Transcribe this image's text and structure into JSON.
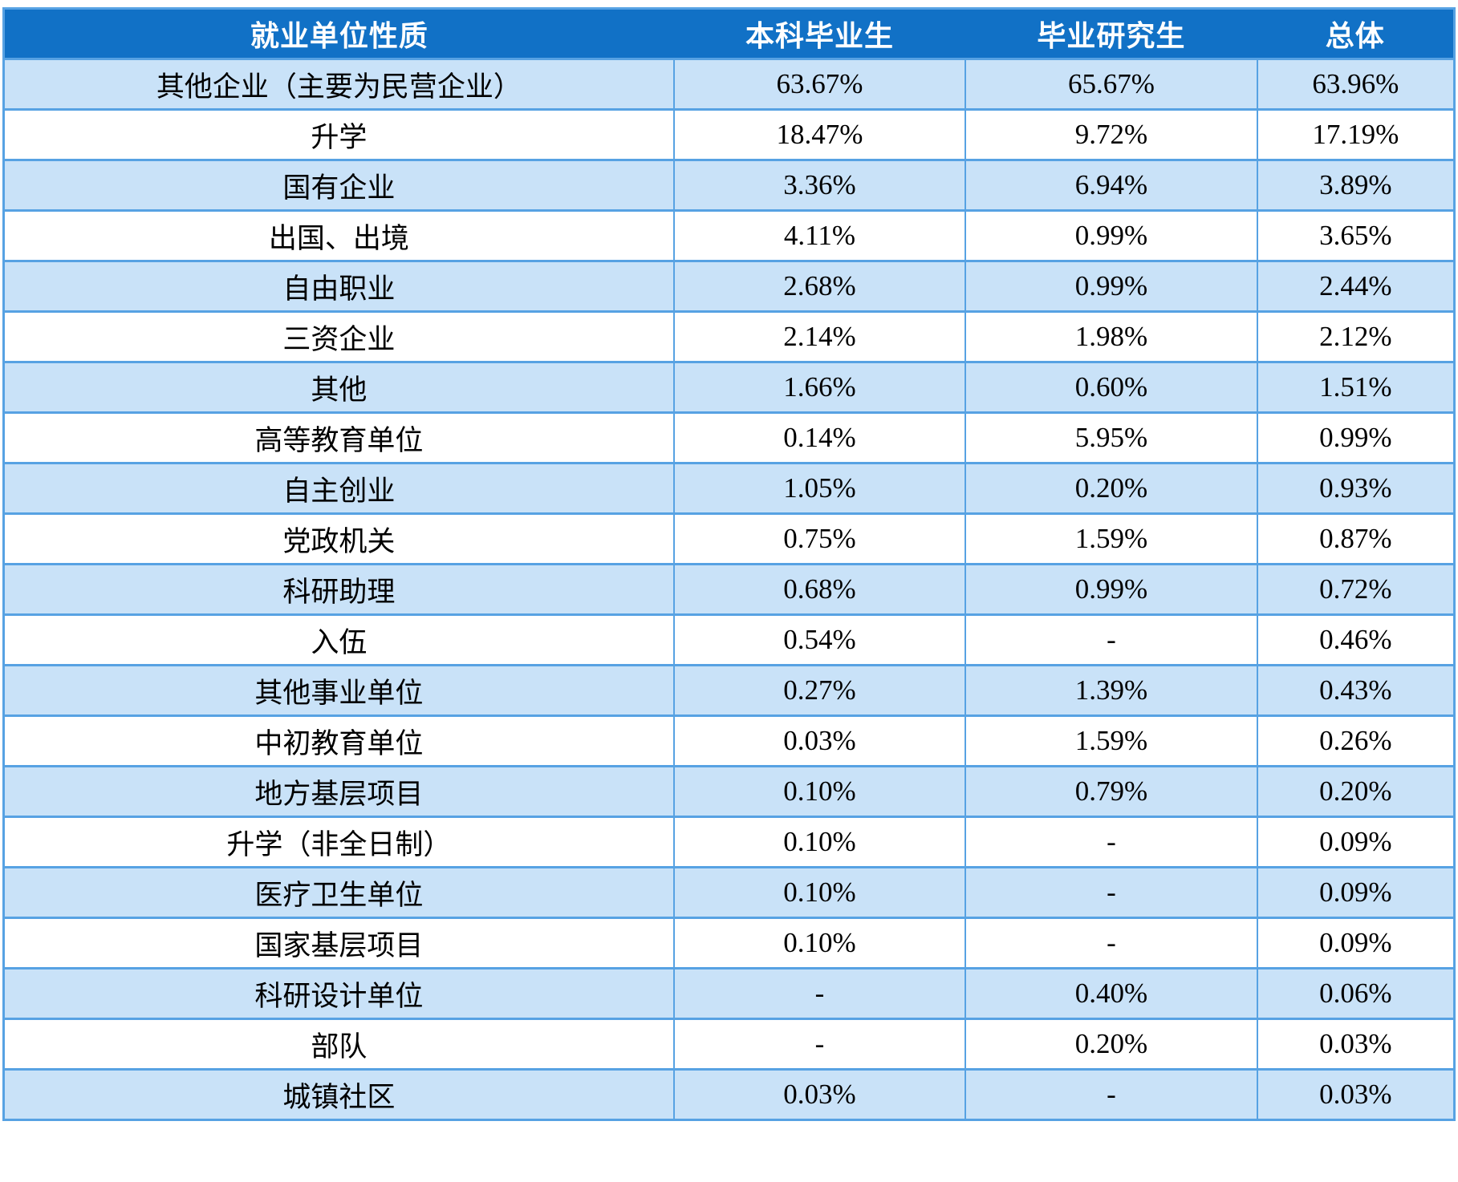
{
  "colors": {
    "header_bg": "#1171C6",
    "header_text": "#FFFFFF",
    "row_alt_bg": "#C9E2F8",
    "row_bg": "#FFFFFF",
    "border": "#57A2E3",
    "body_text": "#000000"
  },
  "table": {
    "columns": [
      "就业单位性质",
      "本科毕业生",
      "毕业研究生",
      "总体"
    ],
    "rows": [
      [
        "其他企业（主要为民营企业）",
        "63.67%",
        "65.67%",
        "63.96%"
      ],
      [
        "升学",
        "18.47%",
        "9.72%",
        "17.19%"
      ],
      [
        "国有企业",
        "3.36%",
        "6.94%",
        "3.89%"
      ],
      [
        "出国、出境",
        "4.11%",
        "0.99%",
        "3.65%"
      ],
      [
        "自由职业",
        "2.68%",
        "0.99%",
        "2.44%"
      ],
      [
        "三资企业",
        "2.14%",
        "1.98%",
        "2.12%"
      ],
      [
        "其他",
        "1.66%",
        "0.60%",
        "1.51%"
      ],
      [
        "高等教育单位",
        "0.14%",
        "5.95%",
        "0.99%"
      ],
      [
        "自主创业",
        "1.05%",
        "0.20%",
        "0.93%"
      ],
      [
        "党政机关",
        "0.75%",
        "1.59%",
        "0.87%"
      ],
      [
        "科研助理",
        "0.68%",
        "0.99%",
        "0.72%"
      ],
      [
        "入伍",
        "0.54%",
        "-",
        "0.46%"
      ],
      [
        "其他事业单位",
        "0.27%",
        "1.39%",
        "0.43%"
      ],
      [
        "中初教育单位",
        "0.03%",
        "1.59%",
        "0.26%"
      ],
      [
        "地方基层项目",
        "0.10%",
        "0.79%",
        "0.20%"
      ],
      [
        "升学（非全日制）",
        "0.10%",
        "-",
        "0.09%"
      ],
      [
        "医疗卫生单位",
        "0.10%",
        "-",
        "0.09%"
      ],
      [
        "国家基层项目",
        "0.10%",
        "-",
        "0.09%"
      ],
      [
        "科研设计单位",
        "-",
        "0.40%",
        "0.06%"
      ],
      [
        "部队",
        "-",
        "0.20%",
        "0.03%"
      ],
      [
        "城镇社区",
        "0.03%",
        "-",
        "0.03%"
      ]
    ]
  },
  "chart_data": {
    "type": "table",
    "title": "就业单位性质",
    "categories": [
      "其他企业（主要为民营企业）",
      "升学",
      "国有企业",
      "出国、出境",
      "自由职业",
      "三资企业",
      "其他",
      "高等教育单位",
      "自主创业",
      "党政机关",
      "科研助理",
      "入伍",
      "其他事业单位",
      "中初教育单位",
      "地方基层项目",
      "升学（非全日制）",
      "医疗卫生单位",
      "国家基层项目",
      "科研设计单位",
      "部队",
      "城镇社区"
    ],
    "series": [
      {
        "name": "本科毕业生",
        "values": [
          63.67,
          18.47,
          3.36,
          4.11,
          2.68,
          2.14,
          1.66,
          0.14,
          1.05,
          0.75,
          0.68,
          0.54,
          0.27,
          0.03,
          0.1,
          0.1,
          0.1,
          0.1,
          null,
          null,
          0.03
        ]
      },
      {
        "name": "毕业研究生",
        "values": [
          65.67,
          9.72,
          6.94,
          0.99,
          0.99,
          1.98,
          0.6,
          5.95,
          0.2,
          1.59,
          0.99,
          null,
          1.39,
          1.59,
          0.79,
          null,
          null,
          null,
          0.4,
          0.2,
          null
        ]
      },
      {
        "name": "总体",
        "values": [
          63.96,
          17.19,
          3.89,
          3.65,
          2.44,
          2.12,
          1.51,
          0.99,
          0.93,
          0.87,
          0.72,
          0.46,
          0.43,
          0.26,
          0.2,
          0.09,
          0.09,
          0.09,
          0.06,
          0.03,
          0.03
        ]
      }
    ],
    "unit": "percent"
  }
}
